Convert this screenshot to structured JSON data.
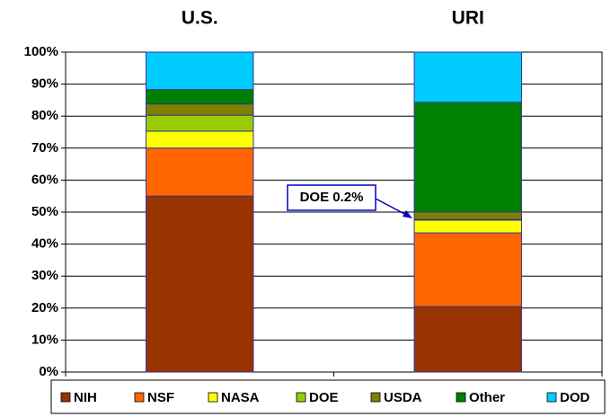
{
  "chart_data": {
    "type": "stacked_bar",
    "categories": [
      "U.S.",
      "URI"
    ],
    "series": [
      {
        "name": "NIH",
        "color": "#993300",
        "values": [
          55,
          20.5
        ]
      },
      {
        "name": "NSF",
        "color": "#FF6600",
        "values": [
          15,
          23
        ]
      },
      {
        "name": "NASA",
        "color": "#FFFF00",
        "values": [
          5.3,
          4
        ]
      },
      {
        "name": "DOE",
        "color": "#99CC00",
        "values": [
          5,
          0.2
        ]
      },
      {
        "name": "USDA",
        "color": "#808000",
        "values": [
          3.5,
          2.3
        ]
      },
      {
        "name": "Other",
        "color": "#008000",
        "values": [
          4.5,
          34.3
        ]
      },
      {
        "name": "DOD",
        "color": "#00CCFF",
        "values": [
          11.7,
          15.7
        ]
      }
    ],
    "ylim": [
      0,
      100
    ],
    "yticks": [
      {
        "value": 0,
        "label": "0%"
      },
      {
        "value": 10,
        "label": "10%"
      },
      {
        "value": 20,
        "label": "20%"
      },
      {
        "value": 30,
        "label": "30%"
      },
      {
        "value": 40,
        "label": "40%"
      },
      {
        "value": 50,
        "label": "50%"
      },
      {
        "value": 60,
        "label": "60%"
      },
      {
        "value": 70,
        "label": "70%"
      },
      {
        "value": 80,
        "label": "80%"
      },
      {
        "value": 90,
        "label": "90%"
      },
      {
        "value": 100,
        "label": "100%"
      }
    ],
    "grid": true,
    "legend": "bottom",
    "annotation": "DOE 0.2%"
  }
}
